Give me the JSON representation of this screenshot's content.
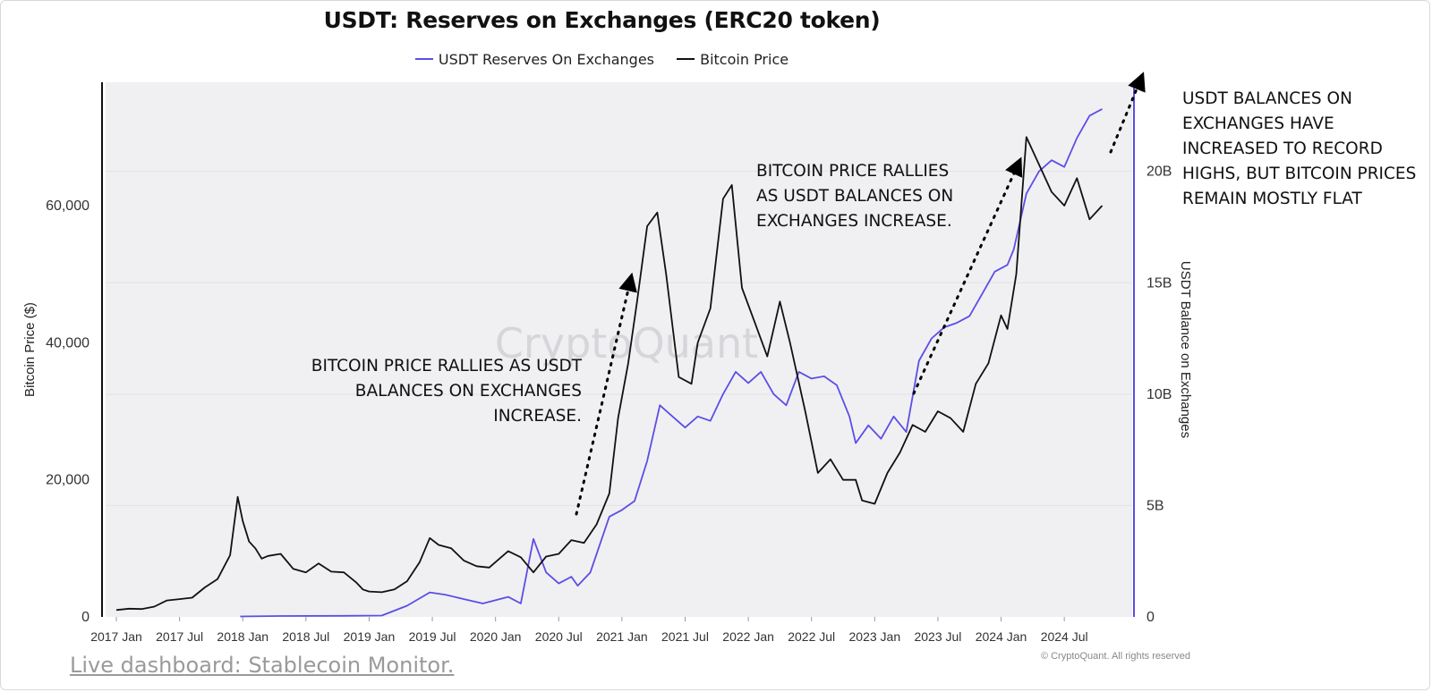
{
  "chart_data": {
    "type": "line",
    "title": "USDT: Reserves on Exchanges (ERC20 token)",
    "legend": [
      {
        "name": "USDT Reserves On Exchanges",
        "color": "#5b4ee6"
      },
      {
        "name": "Bitcoin Price",
        "color": "#111111"
      }
    ],
    "legend_position": "top-center",
    "watermark": "CryptoQuant",
    "copyright": "© CryptoQuant. All rights reserved",
    "x_ticks": [
      "2017 Jan",
      "2017 Jul",
      "2018 Jan",
      "2018 Jul",
      "2019 Jan",
      "2019 Jul",
      "2020 Jan",
      "2020 Jul",
      "2021 Jan",
      "2021 Jul",
      "2022 Jan",
      "2022 Jul",
      "2023 Jan",
      "2023 Jul",
      "2024 Jan",
      "2024 Jul"
    ],
    "left_axis": {
      "label": "Bitcoin Price ($)",
      "ticks": [
        "0",
        "20,000",
        "40,000",
        "60,000"
      ],
      "tick_values": [
        0,
        20000,
        40000,
        60000
      ],
      "range": [
        0,
        78000
      ]
    },
    "right_axis": {
      "label": "USDT Balance on Exchanges",
      "ticks": [
        "0",
        "5B",
        "10B",
        "15B",
        "20B"
      ],
      "tick_values": [
        0,
        5,
        10,
        15,
        20
      ],
      "range": [
        0,
        24
      ],
      "color": "#5b4ee6"
    },
    "x_range": [
      2017.0,
      2024.86
    ],
    "grid": true,
    "series": [
      {
        "name": "Bitcoin Price",
        "axis": "left",
        "color": "#111111",
        "x": [
          2017.0,
          2017.1,
          2017.2,
          2017.3,
          2017.4,
          2017.5,
          2017.6,
          2017.7,
          2017.8,
          2017.9,
          2017.96,
          2018.0,
          2018.05,
          2018.1,
          2018.15,
          2018.2,
          2018.3,
          2018.4,
          2018.5,
          2018.6,
          2018.7,
          2018.8,
          2018.9,
          2018.95,
          2019.0,
          2019.1,
          2019.2,
          2019.3,
          2019.4,
          2019.48,
          2019.55,
          2019.65,
          2019.75,
          2019.85,
          2019.95,
          2020.1,
          2020.2,
          2020.3,
          2020.4,
          2020.5,
          2020.6,
          2020.7,
          2020.8,
          2020.9,
          2020.97,
          2021.05,
          2021.12,
          2021.2,
          2021.28,
          2021.35,
          2021.45,
          2021.55,
          2021.6,
          2021.7,
          2021.8,
          2021.87,
          2021.95,
          2022.05,
          2022.15,
          2022.25,
          2022.33,
          2022.45,
          2022.55,
          2022.65,
          2022.75,
          2022.85,
          2022.9,
          2023.0,
          2023.1,
          2023.2,
          2023.3,
          2023.4,
          2023.5,
          2023.6,
          2023.7,
          2023.8,
          2023.9,
          2024.0,
          2024.05,
          2024.12,
          2024.2,
          2024.3,
          2024.4,
          2024.5,
          2024.6,
          2024.7,
          2024.8
        ],
        "values": [
          1000,
          1200,
          1150,
          1500,
          2400,
          2600,
          2800,
          4300,
          5500,
          9000,
          17500,
          14000,
          11000,
          10000,
          8500,
          8900,
          9200,
          7000,
          6500,
          7800,
          6600,
          6500,
          5000,
          4000,
          3700,
          3600,
          4000,
          5200,
          8000,
          11500,
          10500,
          10000,
          8200,
          7400,
          7200,
          9600,
          8700,
          6500,
          8800,
          9200,
          11200,
          10800,
          13500,
          18000,
          29000,
          37000,
          46000,
          57000,
          59000,
          50000,
          35000,
          34000,
          40000,
          45000,
          61000,
          63000,
          48000,
          43000,
          38000,
          46000,
          40000,
          30000,
          21000,
          23000,
          20000,
          20000,
          17000,
          16500,
          21000,
          24000,
          28000,
          27000,
          30000,
          29000,
          27000,
          34000,
          37000,
          44000,
          42000,
          50000,
          70000,
          66000,
          62000,
          60000,
          64000,
          58000,
          60000
        ]
      },
      {
        "name": "USDT Reserves On Exchanges",
        "axis": "right",
        "color": "#5b4ee6",
        "x": [
          2017.98,
          2018.3,
          2018.8,
          2019.1,
          2019.3,
          2019.48,
          2019.6,
          2019.75,
          2019.9,
          2020.1,
          2020.2,
          2020.3,
          2020.4,
          2020.5,
          2020.6,
          2020.65,
          2020.75,
          2020.9,
          2021.0,
          2021.1,
          2021.2,
          2021.3,
          2021.4,
          2021.5,
          2021.6,
          2021.7,
          2021.8,
          2021.9,
          2022.0,
          2022.1,
          2022.2,
          2022.3,
          2022.4,
          2022.5,
          2022.6,
          2022.7,
          2022.8,
          2022.85,
          2022.95,
          2023.05,
          2023.15,
          2023.25,
          2023.35,
          2023.45,
          2023.55,
          2023.65,
          2023.75,
          2023.85,
          2023.95,
          2024.05,
          2024.1,
          2024.2,
          2024.3,
          2024.4,
          2024.5,
          2024.6,
          2024.7,
          2024.8
        ],
        "values": [
          0.02,
          0.04,
          0.05,
          0.06,
          0.5,
          1.1,
          1.0,
          0.8,
          0.6,
          0.9,
          0.6,
          3.5,
          2.0,
          1.5,
          1.8,
          1.4,
          2.0,
          4.5,
          4.8,
          5.2,
          7.0,
          9.5,
          9.0,
          8.5,
          9.0,
          8.8,
          10.0,
          11.0,
          10.5,
          11.0,
          10.0,
          9.5,
          11.0,
          10.7,
          10.8,
          10.4,
          9.0,
          7.8,
          8.6,
          8.0,
          9.0,
          8.3,
          11.5,
          12.5,
          13.0,
          13.2,
          13.5,
          14.5,
          15.5,
          15.8,
          16.5,
          19.0,
          20.0,
          20.5,
          20.2,
          21.5,
          22.5,
          22.8
        ]
      }
    ]
  },
  "annotations": {
    "left": [
      "BITCOIN PRICE RALLIES AS USDT",
      "BALANCES ON EXCHANGES",
      "INCREASE."
    ],
    "middle": [
      "BITCOIN PRICE RALLIES",
      "AS USDT BALANCES ON",
      "EXCHANGES INCREASE."
    ],
    "right": [
      "USDT BALANCES ON",
      "EXCHANGES HAVE",
      "INCREASED TO RECORD",
      "HIGHS, BUT BITCOIN PRICES",
      "REMAIN MOSTLY FLAT"
    ]
  },
  "footer": {
    "link_text": "Live dashboard: Stablecoin Monitor."
  }
}
